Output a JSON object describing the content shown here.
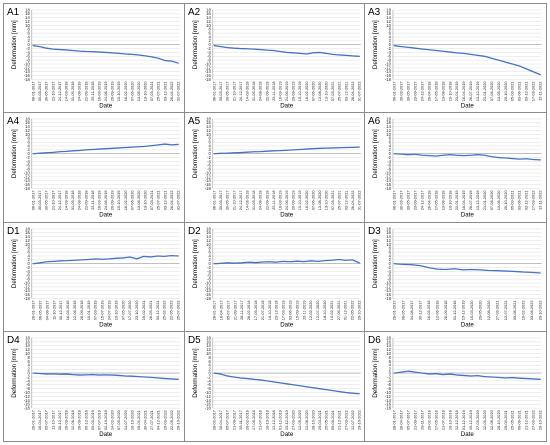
{
  "colors": {
    "series": "#4472c4"
  },
  "chart_data": [
    {
      "type": "line",
      "panel_label": "A1",
      "xlabel": "Date",
      "ylabel": "Deformation [mm]",
      "ylim": [
        -18,
        18
      ],
      "yticks": [
        18,
        16,
        14,
        12,
        10,
        8,
        6,
        4,
        2,
        0,
        -2,
        -4,
        -6,
        -8,
        -10,
        -12,
        -14,
        -16,
        -18
      ],
      "grid": true,
      "x": [
        "06-01-2017",
        "30-03-2017",
        "30-05-2017",
        "21-10-2017",
        "24-12-2017",
        "14-03-2018",
        "31-05-2018",
        "24-08-2018",
        "22-09-2018",
        "25-11-2018",
        "16-03-2019",
        "24-06-2019",
        "20-09-2019",
        "10-10-2019",
        "16-02-2020",
        "07-06-2020",
        "13-08-2020",
        "13-10-2020",
        "07-03-2021",
        "25-07-2021",
        "03-12-2021",
        "26-04-2022",
        "31-07-2022"
      ],
      "values": [
        -0.5,
        -1,
        -1.8,
        -2.3,
        -2.5,
        -2.7,
        -3,
        -3.3,
        -3.5,
        -3.6,
        -3.8,
        -4,
        -4.2,
        -4.5,
        -4.8,
        -5,
        -5.3,
        -5.8,
        -6.3,
        -7,
        -8.2,
        -8.5,
        -9.5
      ]
    },
    {
      "type": "line",
      "panel_label": "A2",
      "xlabel": "Date",
      "ylabel": "Deformation [mm]",
      "ylim": [
        -18,
        18
      ],
      "yticks": [
        18,
        16,
        14,
        12,
        10,
        8,
        6,
        4,
        2,
        0,
        -2,
        -4,
        -6,
        -8,
        -10,
        -12,
        -14,
        -16,
        -18
      ],
      "grid": true,
      "x": [
        "06-01-2017",
        "30-03-2017",
        "30-05-2017",
        "21-10-2017",
        "24-12-2017",
        "14-03-2018",
        "31-05-2018",
        "24-08-2018",
        "22-09-2018",
        "25-11-2018",
        "16-03-2019",
        "24-06-2019",
        "20-09-2019",
        "10-10-2019",
        "16-02-2020",
        "07-06-2020",
        "13-08-2020",
        "13-10-2020",
        "07-03-2021",
        "25-07-2021",
        "03-12-2021",
        "26-04-2022",
        "31-07-2022"
      ],
      "values": [
        -0.5,
        -1,
        -1.5,
        -1.8,
        -2,
        -2.1,
        -2.3,
        -2.5,
        -2.8,
        -3,
        -3.5,
        -4,
        -4.2,
        -4.5,
        -4.8,
        -4.2,
        -4,
        -4.5,
        -5,
        -5.3,
        -5.5,
        -5.8,
        -6
      ]
    },
    {
      "type": "line",
      "panel_label": "A3",
      "xlabel": "Date",
      "ylabel": "Deformation [mm]",
      "ylim": [
        -18,
        18
      ],
      "yticks": [
        18,
        16,
        14,
        12,
        10,
        8,
        6,
        4,
        2,
        0,
        -2,
        -4,
        -6,
        -8,
        -10,
        -12,
        -14,
        -16,
        -18
      ],
      "grid": true,
      "x": [
        "06-01-2017",
        "30-03-2017",
        "30-05-2017",
        "23-09-2017",
        "24-12-2017",
        "26-04-2018",
        "17-05-2018",
        "13-08-2018",
        "10-10-2018",
        "23-01-2019",
        "18-04-2019",
        "26-07-2019",
        "13-12-2019",
        "21-01-2020",
        "07-06-2020",
        "13-08-2020",
        "20-10-2020",
        "05-03-2021",
        "03-06-2021",
        "03-12-2021",
        "17-03-2022",
        "12-11-2022"
      ],
      "values": [
        -0.5,
        -1,
        -1.4,
        -1.8,
        -2.2,
        -2.6,
        -3,
        -3.4,
        -3.8,
        -4.2,
        -4.5,
        -5,
        -5.5,
        -6,
        -7,
        -8,
        -9,
        -10,
        -11,
        -12.5,
        -14,
        -15.5
      ]
    },
    {
      "type": "line",
      "panel_label": "A4",
      "xlabel": "Date",
      "ylabel": "Deformation [mm]",
      "ylim": [
        -18,
        18
      ],
      "yticks": [
        18,
        16,
        14,
        12,
        10,
        8,
        6,
        4,
        2,
        0,
        -2,
        -4,
        -6,
        -8,
        -10,
        -12,
        -14,
        -16,
        -18
      ],
      "grid": true,
      "x": [
        "06-01-2017",
        "30-03-2017",
        "30-05-2017",
        "21-10-2017",
        "24-12-2017",
        "14-03-2018",
        "31-05-2018",
        "24-08-2018",
        "22-09-2018",
        "25-11-2018",
        "16-03-2019",
        "24-06-2019",
        "20-09-2019",
        "10-10-2019",
        "16-02-2020",
        "07-06-2020",
        "13-08-2020",
        "13-10-2020",
        "07-03-2021",
        "25-07-2021",
        "03-12-2021",
        "26-04-2022",
        "31-07-2022"
      ],
      "values": [
        0,
        0.3,
        0.5,
        0.7,
        1,
        1.2,
        1.5,
        1.7,
        2,
        2.2,
        2.4,
        2.6,
        2.8,
        3,
        3.2,
        3.4,
        3.6,
        3.8,
        4.2,
        4.6,
        5,
        4.6,
        4.8
      ]
    },
    {
      "type": "line",
      "panel_label": "A5",
      "xlabel": "Date",
      "ylabel": "Deformation [mm]",
      "ylim": [
        -18,
        18
      ],
      "yticks": [
        18,
        16,
        14,
        12,
        10,
        8,
        6,
        4,
        2,
        0,
        -2,
        -4,
        -6,
        -8,
        -10,
        -12,
        -14,
        -16,
        -18
      ],
      "grid": true,
      "x": [
        "06-01-2017",
        "30-03-2017",
        "30-05-2017",
        "21-10-2017",
        "24-12-2017",
        "14-03-2018",
        "31-05-2018",
        "24-08-2018",
        "22-09-2018",
        "25-11-2018",
        "16-03-2019",
        "24-06-2019",
        "20-09-2019",
        "10-10-2019",
        "16-02-2020",
        "07-06-2020",
        "13-08-2020",
        "13-10-2020",
        "07-03-2021",
        "25-07-2021",
        "03-12-2021",
        "26-04-2022",
        "31-07-2022"
      ],
      "values": [
        0,
        0.2,
        0.3,
        0.5,
        0.6,
        0.8,
        1,
        1.1,
        1.3,
        1.5,
        1.6,
        1.8,
        2,
        2.2,
        2.4,
        2.6,
        2.8,
        2.9,
        3,
        3.1,
        3.2,
        3.3,
        3.4
      ]
    },
    {
      "type": "line",
      "panel_label": "A6",
      "xlabel": "Date",
      "ylabel": "Deformation [mm]",
      "ylim": [
        -18,
        18
      ],
      "yticks": [
        18,
        16,
        14,
        12,
        10,
        8,
        6,
        4,
        2,
        0,
        -2,
        -4,
        -6,
        -8,
        -10,
        -12,
        -14,
        -16,
        -18
      ],
      "grid": true,
      "x": [
        "06-01-2017",
        "30-03-2017",
        "30-05-2017",
        "23-09-2017",
        "24-12-2017",
        "26-04-2018",
        "17-05-2018",
        "13-08-2018",
        "10-10-2018",
        "23-01-2019",
        "18-04-2019",
        "26-07-2019",
        "13-12-2019",
        "21-01-2020",
        "07-06-2020",
        "13-08-2020",
        "20-10-2020",
        "05-03-2021",
        "03-06-2021",
        "03-12-2021",
        "17-03-2022",
        "12-11-2022"
      ],
      "values": [
        0,
        -0.2,
        -0.5,
        -0.3,
        -0.8,
        -1,
        -1.2,
        -0.8,
        -0.5,
        -0.8,
        -1,
        -0.8,
        -0.5,
        -0.8,
        -1.5,
        -2,
        -2.2,
        -2.5,
        -2.8,
        -2.6,
        -3,
        -3.2
      ]
    },
    {
      "type": "line",
      "panel_label": "D1",
      "xlabel": "Date",
      "ylabel": "Deformation [mm]",
      "ylim": [
        -18,
        18
      ],
      "yticks": [
        18,
        16,
        14,
        12,
        10,
        8,
        6,
        4,
        2,
        0,
        -2,
        -4,
        -6,
        -8,
        -10,
        -12,
        -14,
        -16,
        -18
      ],
      "grid": true,
      "x": [
        "28-01-2017",
        "06-05-2017",
        "04-08-2017",
        "11-10-2017",
        "30-12-2017",
        "16-03-2018",
        "12-06-2018",
        "28-09-2018",
        "10-01-2019",
        "07-03-2019",
        "15-07-2019",
        "24-07-2019",
        "10-10-2019",
        "07-05-2020",
        "17-07-2020",
        "23-10-2020",
        "19-02-2021",
        "26-05-2021",
        "04-12-2021",
        "25-02-2022",
        "22-05-2022",
        "25-07-2022"
      ],
      "values": [
        0,
        0.5,
        1,
        1.2,
        1.5,
        1.6,
        1.8,
        2,
        2.2,
        2.5,
        2.3,
        2.5,
        2.8,
        3,
        3.5,
        2.5,
        3.8,
        3.5,
        4,
        3.8,
        4.2,
        4
      ]
    },
    {
      "type": "line",
      "panel_label": "D2",
      "xlabel": "Date",
      "ylabel": "Deformation [mm]",
      "ylim": [
        -18,
        18
      ],
      "yticks": [
        18,
        16,
        14,
        12,
        10,
        8,
        6,
        4,
        2,
        0,
        -2,
        -4,
        -6,
        -8,
        -10,
        -12,
        -14,
        -16,
        -18
      ],
      "grid": true,
      "x": [
        "28-01-2017",
        "16-04-2017",
        "05-07-2017",
        "21-09-2017",
        "28-11-2017",
        "26-02-2018",
        "17-05-2018",
        "21-07-2018",
        "10-10-2018",
        "23-12-2018",
        "17-03-2019",
        "03-06-2019",
        "15-09-2019",
        "22-11-2019",
        "12-02-2020",
        "13-07-2020",
        "18-10-2020",
        "10-02-2021",
        "27-06-2021",
        "01-12-2021",
        "22-05-2022",
        "29-10-2022"
      ],
      "values": [
        0,
        0.2,
        0.5,
        0.3,
        0.5,
        0.8,
        0.6,
        0.9,
        1,
        0.8,
        1.2,
        1,
        1.3,
        1.1,
        1.5,
        1.2,
        1.6,
        1.8,
        2.2,
        1.8,
        2,
        0.5
      ]
    },
    {
      "type": "line",
      "panel_label": "D3",
      "xlabel": "Date",
      "ylabel": "Deformation [mm]",
      "ylim": [
        -18,
        18
      ],
      "yticks": [
        18,
        16,
        14,
        12,
        10,
        8,
        6,
        4,
        2,
        0,
        -2,
        -4,
        -6,
        -8,
        -10,
        -12,
        -14,
        -16,
        -18
      ],
      "grid": true,
      "x": [
        "28-01-2017",
        "06-05-2017",
        "04-08-2017",
        "30-12-2017",
        "16-03-2018",
        "12-06-2018",
        "28-09-2018",
        "01-12-2018",
        "15-12-2019",
        "15-03-2020",
        "29-05-2020",
        "12-08-2020",
        "27-03-2021",
        "13-07-2021",
        "09-08-2021",
        "19-02-2022",
        "03-06-2022",
        "29-10-2022"
      ],
      "values": [
        0,
        -0.3,
        -0.5,
        -1,
        -2,
        -2.8,
        -3,
        -2.6,
        -3.2,
        -3,
        -3.2,
        -3.5,
        -3.6,
        -3.8,
        -4,
        -4.3,
        -4.5,
        -4.8
      ]
    },
    {
      "type": "line",
      "panel_label": "D4",
      "xlabel": "Date",
      "ylabel": "Deformation [mm]",
      "ylim": [
        -18,
        18
      ],
      "yticks": [
        18,
        16,
        14,
        12,
        10,
        8,
        6,
        4,
        2,
        0,
        -2,
        -4,
        -6,
        -8,
        -10,
        -12,
        -14,
        -16,
        -18
      ],
      "grid": true,
      "x": [
        "28-01-2017",
        "16-04-2017",
        "05-07-2017",
        "11-10-2017",
        "30-12-2017",
        "16-03-2018",
        "12-06-2018",
        "28-09-2018",
        "05-12-2018",
        "03-03-2019",
        "07-07-2019",
        "02-10-2019",
        "14-02-2020",
        "07-05-2020",
        "14-07-2020",
        "10-10-2020",
        "19-01-2021",
        "30-04-2021",
        "27-07-2021",
        "04-12-2021",
        "15-03-2022",
        "22-05-2022",
        "29-10-2022"
      ],
      "values": [
        0,
        -0.2,
        -0.5,
        -0.4,
        -0.6,
        -0.5,
        -0.8,
        -1,
        -0.9,
        -0.8,
        -1,
        -0.9,
        -1,
        -1.2,
        -1.5,
        -1.6,
        -1.8,
        -2,
        -2.2,
        -2.5,
        -2.8,
        -3,
        -3.2
      ]
    },
    {
      "type": "line",
      "panel_label": "D5",
      "xlabel": "Date",
      "ylabel": "Deformation [mm]",
      "ylim": [
        -18,
        18
      ],
      "yticks": [
        18,
        16,
        14,
        12,
        10,
        8,
        6,
        4,
        2,
        0,
        -2,
        -4,
        -6,
        -8,
        -10,
        -12,
        -14,
        -16,
        -18
      ],
      "grid": true,
      "x": [
        "28-01-2017",
        "16-04-2017",
        "05-07-2017",
        "21-09-2017",
        "28-11-2017",
        "26-02-2018",
        "17-05-2018",
        "21-07-2018",
        "10-10-2018",
        "12-12-2018",
        "01-12-2019",
        "15-12-2019",
        "27-03-2020",
        "12-05-2020",
        "12-08-2020",
        "28-10-2020",
        "29-03-2021",
        "25-05-2021",
        "09-09-2021",
        "21-12-2021",
        "27-03-2022",
        "12-07-2022",
        "29-10-2022"
      ],
      "values": [
        0,
        -0.5,
        -1.5,
        -2,
        -2.5,
        -2.8,
        -3.2,
        -3.5,
        -4,
        -4.5,
        -5,
        -5.5,
        -6,
        -6.5,
        -7,
        -7.5,
        -8,
        -8.5,
        -9,
        -9.5,
        -10,
        -10.3,
        -10.6
      ]
    },
    {
      "type": "line",
      "panel_label": "D6",
      "xlabel": "Date",
      "ylabel": "Deformation [mm]",
      "ylim": [
        -18,
        18
      ],
      "yticks": [
        18,
        16,
        14,
        12,
        10,
        8,
        6,
        4,
        2,
        0,
        -2,
        -4,
        -6,
        -8,
        -10,
        -12,
        -14,
        -16,
        -18
      ],
      "grid": true,
      "x": [
        "28-01-2017",
        "16-04-2017",
        "05-07-2017",
        "21-09-2017",
        "28-11-2017",
        "26-02-2018",
        "17-05-2018",
        "21-07-2018",
        "10-10-2018",
        "12-12-2018",
        "01-12-2019",
        "15-12-2019",
        "27-03-2020",
        "12-05-2020",
        "12-08-2020",
        "28-10-2020",
        "29-03-2021",
        "25-05-2021",
        "09-09-2021",
        "21-12-2021",
        "27-03-2022",
        "29-10-2022"
      ],
      "values": [
        0,
        0.5,
        1,
        0.5,
        0,
        -0.5,
        -0.3,
        -0.8,
        -0.5,
        -1,
        -1.2,
        -1.5,
        -1.3,
        -1.8,
        -2,
        -2.2,
        -2.5,
        -2.3,
        -2.6,
        -2.8,
        -3,
        -3.2
      ]
    }
  ]
}
